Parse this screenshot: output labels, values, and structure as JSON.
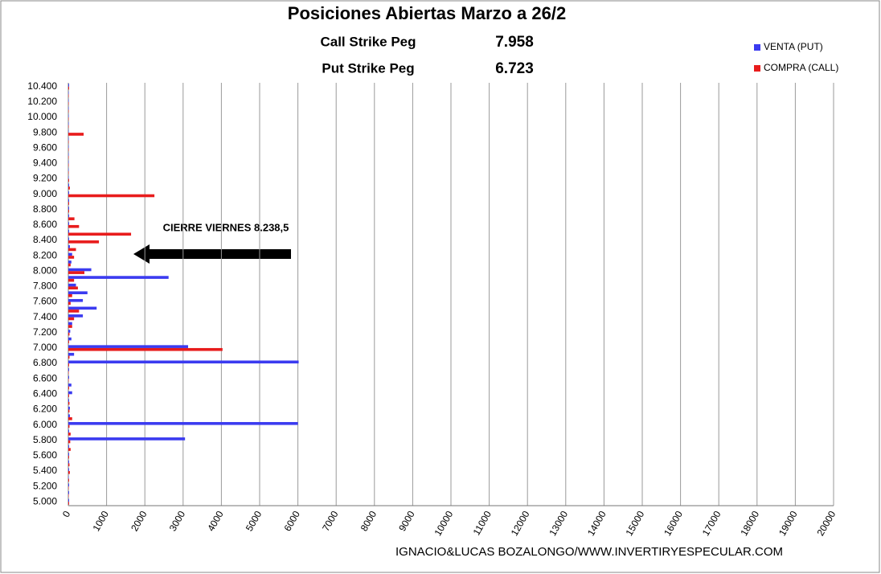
{
  "chart_data": {
    "type": "hbar",
    "title": "Posiciones Abiertas Marzo a 26/2",
    "annotations": [
      {
        "label": "Call Strike Peg",
        "value": "7.958"
      },
      {
        "label": "Put Strike Peg",
        "value": "6.723"
      },
      {
        "text": "CIERRE VIERNES 8.238,5"
      }
    ],
    "footer": "IGNACIO&LUCAS BOZALONGO/WWW.INVERTIRYESPECULAR.COM",
    "categories": [
      "5.000",
      null,
      "5.200",
      null,
      "5.400",
      null,
      "5.600",
      null,
      "5.800",
      null,
      "6.000",
      null,
      "6.200",
      null,
      "6.400",
      null,
      "6.600",
      null,
      "6.800",
      null,
      "7.000",
      null,
      "7.200",
      null,
      "7.400",
      null,
      "7.600",
      null,
      "7.800",
      null,
      "8.000",
      null,
      "8.200",
      null,
      "8.400",
      null,
      "8.600",
      null,
      "8.800",
      null,
      "9.000",
      null,
      "9.200",
      null,
      "9.400",
      null,
      "9.600",
      null,
      "9.800",
      null,
      "10.000",
      null,
      "10.200",
      null,
      "10.400"
    ],
    "series": [
      {
        "name": "VENTA (PUT)",
        "color": "#3b3bf0",
        "values": [
          20,
          20,
          20,
          10,
          20,
          20,
          20,
          20,
          3050,
          20,
          6000,
          40,
          40,
          20,
          100,
          80,
          20,
          20,
          6020,
          150,
          3130,
          80,
          50,
          100,
          380,
          740,
          380,
          500,
          200,
          2620,
          600,
          80,
          100,
          40,
          20,
          20,
          20,
          20,
          20,
          20,
          20,
          20,
          10,
          10,
          10,
          10,
          10,
          10,
          10,
          10,
          10,
          10,
          10,
          10,
          20
        ]
      },
      {
        "name": "COMPRA (CALL)",
        "color": "#e81c1c",
        "values": [
          20,
          10,
          10,
          20,
          40,
          30,
          20,
          60,
          50,
          60,
          30,
          100,
          30,
          30,
          20,
          20,
          10,
          10,
          20,
          30,
          4030,
          20,
          30,
          100,
          150,
          280,
          60,
          100,
          250,
          150,
          420,
          60,
          150,
          200,
          800,
          1640,
          280,
          160,
          20,
          20,
          2250,
          40,
          20,
          10,
          10,
          10,
          10,
          10,
          400,
          10,
          10,
          10,
          10,
          10,
          20
        ]
      }
    ],
    "xlim": [
      0,
      20000
    ],
    "xticks": [
      0,
      1000,
      2000,
      3000,
      4000,
      5000,
      6000,
      7000,
      8000,
      9000,
      10000,
      11000,
      12000,
      13000,
      14000,
      15000,
      16000,
      17000,
      18000,
      19000,
      20000
    ],
    "grid": true
  }
}
